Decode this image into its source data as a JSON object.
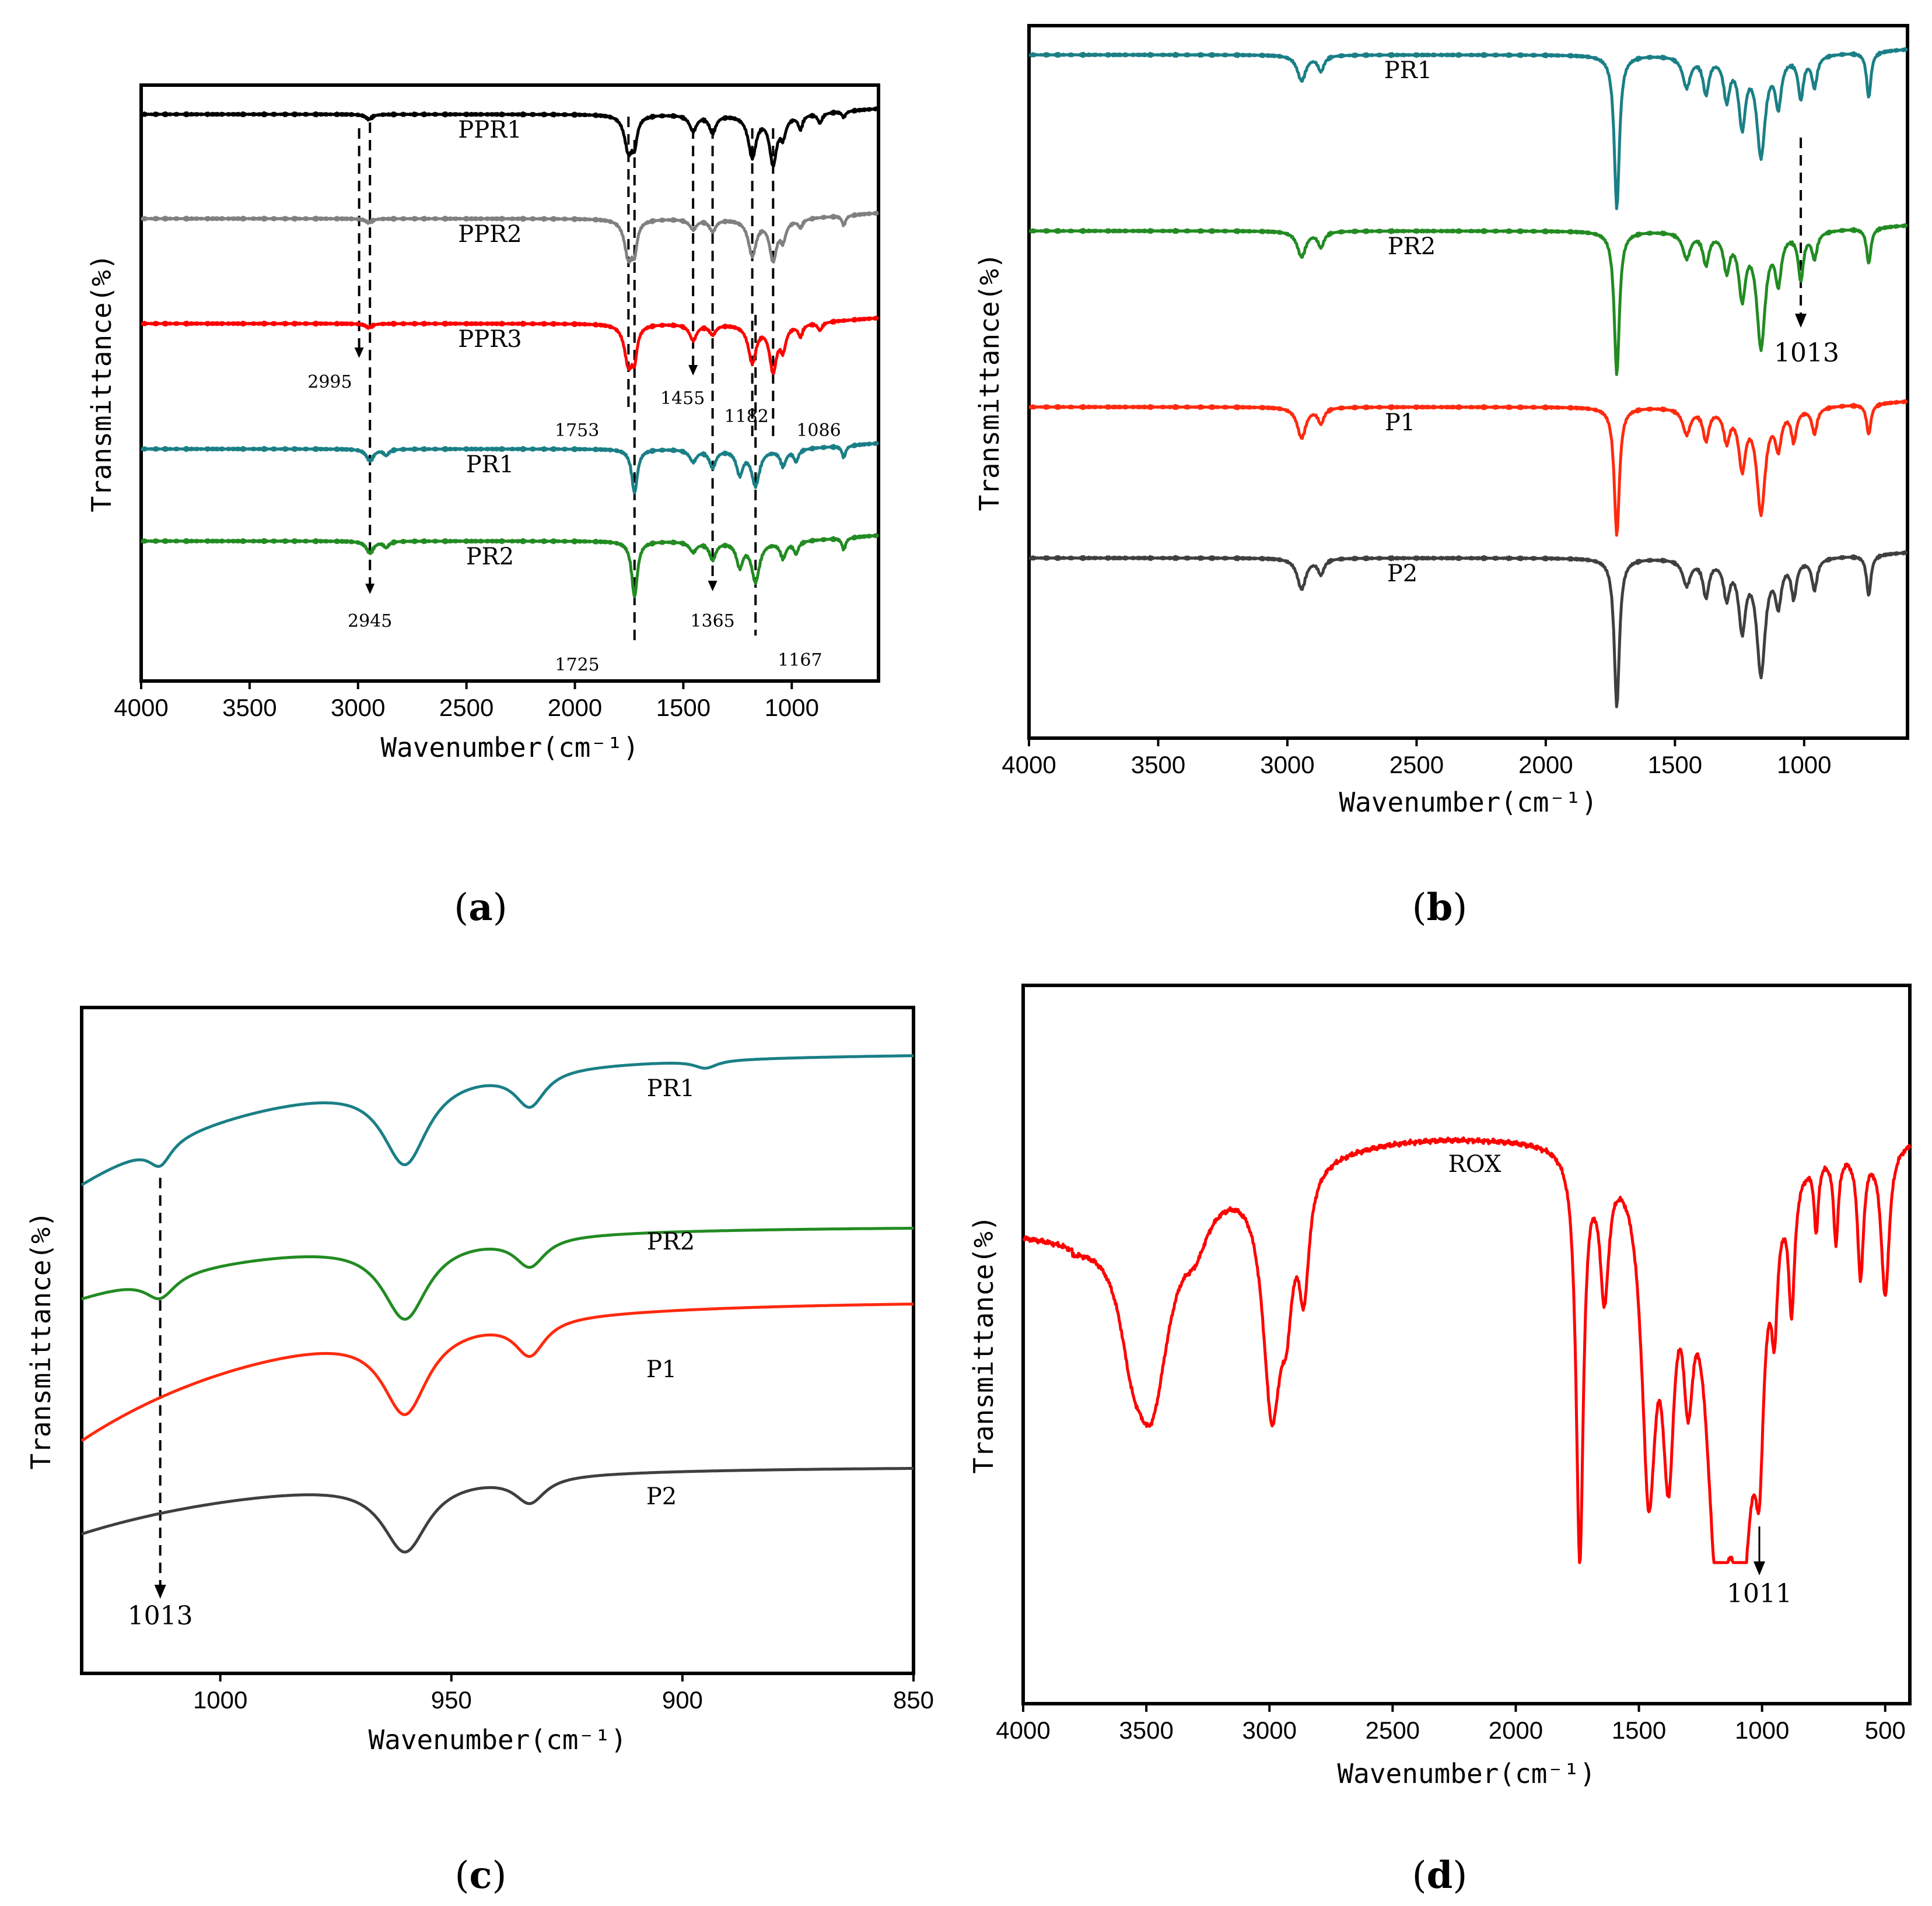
{
  "panels": [
    {
      "id": "a",
      "caption": "(a)",
      "chart_data": {
        "type": "line",
        "title": "",
        "xlabel": "Wavenumber(cm⁻¹)",
        "ylabel": "Transmittance(%)",
        "xlim": [
          4000,
          600
        ],
        "xticks": [
          4000,
          3500,
          3000,
          2500,
          2000,
          1500,
          1000
        ],
        "xtick_labels": [
          "4000",
          "3500",
          "3000",
          "2500",
          "2000",
          "1500",
          "1000"
        ],
        "series": [
          {
            "name": "PPR1",
            "color": "#000000",
            "offset": 0,
            "bands": [
              [
                2950,
                18,
                0.25
              ],
              [
                1753,
                22,
                1.8
              ],
              [
                1725,
                14,
                1.2
              ],
              [
                1455,
                20,
                0.8
              ],
              [
                1365,
                18,
                0.9
              ],
              [
                1182,
                22,
                2.1
              ],
              [
                1086,
                20,
                2.4
              ],
              [
                1040,
                16,
                0.9
              ],
              [
                960,
                12,
                0.7
              ],
              [
                870,
                12,
                0.5
              ],
              [
                760,
                10,
                0.3
              ]
            ]
          },
          {
            "name": "PPR2",
            "color": "#808080",
            "offset": 1,
            "bands": [
              [
                2950,
                18,
                0.2
              ],
              [
                1753,
                22,
                1.9
              ],
              [
                1725,
                14,
                1.3
              ],
              [
                1455,
                20,
                0.5
              ],
              [
                1365,
                18,
                0.6
              ],
              [
                1182,
                22,
                1.8
              ],
              [
                1086,
                20,
                2.0
              ],
              [
                1040,
                16,
                0.9
              ],
              [
                960,
                12,
                0.4
              ],
              [
                760,
                10,
                0.5
              ]
            ]
          },
          {
            "name": "PPR3",
            "color": "#ff0000",
            "offset": 2,
            "bands": [
              [
                2950,
                18,
                0.2
              ],
              [
                1753,
                22,
                2.0
              ],
              [
                1725,
                14,
                1.4
              ],
              [
                1455,
                20,
                0.8
              ],
              [
                1365,
                18,
                0.5
              ],
              [
                1182,
                22,
                1.9
              ],
              [
                1086,
                20,
                2.3
              ],
              [
                1040,
                16,
                1.1
              ],
              [
                960,
                12,
                0.6
              ],
              [
                870,
                12,
                0.4
              ]
            ]
          },
          {
            "name": "PR1",
            "color": "#1a7f86",
            "offset": 3,
            "bands": [
              [
                2945,
                20,
                0.6
              ],
              [
                2870,
                14,
                0.3
              ],
              [
                1725,
                16,
                2.2
              ],
              [
                1455,
                20,
                0.6
              ],
              [
                1365,
                18,
                0.9
              ],
              [
                1240,
                18,
                1.2
              ],
              [
                1167,
                22,
                1.8
              ],
              [
                1040,
                16,
                0.8
              ],
              [
                980,
                12,
                0.6
              ],
              [
                760,
                10,
                0.6
              ]
            ]
          },
          {
            "name": "PR2",
            "color": "#228b22",
            "offset": 4,
            "bands": [
              [
                2945,
                20,
                0.6
              ],
              [
                2870,
                14,
                0.3
              ],
              [
                1725,
                16,
                2.8
              ],
              [
                1455,
                20,
                0.5
              ],
              [
                1365,
                18,
                0.9
              ],
              [
                1240,
                18,
                1.2
              ],
              [
                1167,
                22,
                2.0
              ],
              [
                1040,
                16,
                0.8
              ],
              [
                980,
                12,
                0.6
              ],
              [
                760,
                10,
                0.6
              ]
            ]
          }
        ],
        "annotations": [
          "2995",
          "2945",
          "1753",
          "1725",
          "1455",
          "1365",
          "1182",
          "1167",
          "1086"
        ]
      }
    },
    {
      "id": "b",
      "caption": "(b)",
      "chart_data": {
        "type": "line",
        "title": "",
        "xlabel": "Wavenumber(cm⁻¹)",
        "ylabel": "Transmittance(%)",
        "xlim": [
          4000,
          600
        ],
        "xticks": [
          4000,
          3500,
          3000,
          2500,
          2000,
          1500,
          1000
        ],
        "xtick_labels": [
          "4000",
          "3500",
          "3000",
          "2500",
          "2000",
          "1500",
          "1000"
        ],
        "series": [
          {
            "name": "PR1",
            "color": "#1a7f86",
            "offset": 0,
            "bands": [
              [
                2945,
                20,
                0.5
              ],
              [
                2870,
                14,
                0.3
              ],
              [
                1725,
                12,
                3.0
              ],
              [
                1455,
                18,
                0.6
              ],
              [
                1380,
                14,
                0.7
              ],
              [
                1300,
                14,
                0.8
              ],
              [
                1240,
                16,
                1.3
              ],
              [
                1167,
                20,
                1.9
              ],
              [
                1100,
                14,
                0.9
              ],
              [
                1013,
                12,
                0.8
              ],
              [
                960,
                12,
                0.6
              ],
              [
                750,
                10,
                0.9
              ]
            ]
          },
          {
            "name": "PR2",
            "color": "#228b22",
            "offset": 1,
            "bands": [
              [
                2945,
                20,
                0.5
              ],
              [
                2870,
                14,
                0.3
              ],
              [
                1725,
                12,
                2.8
              ],
              [
                1455,
                18,
                0.5
              ],
              [
                1380,
                14,
                0.6
              ],
              [
                1300,
                14,
                0.7
              ],
              [
                1240,
                16,
                1.2
              ],
              [
                1167,
                20,
                2.2
              ],
              [
                1100,
                14,
                0.9
              ],
              [
                1013,
                12,
                0.9
              ],
              [
                960,
                12,
                0.5
              ],
              [
                750,
                10,
                0.7
              ]
            ]
          },
          {
            "name": "P1",
            "color": "#ff2a0e",
            "offset": 2,
            "bands": [
              [
                2945,
                20,
                0.6
              ],
              [
                2870,
                14,
                0.3
              ],
              [
                1725,
                12,
                2.5
              ],
              [
                1455,
                18,
                0.5
              ],
              [
                1380,
                14,
                0.6
              ],
              [
                1300,
                14,
                0.6
              ],
              [
                1240,
                16,
                1.1
              ],
              [
                1167,
                20,
                2.0
              ],
              [
                1100,
                14,
                0.7
              ],
              [
                1040,
                12,
                0.6
              ],
              [
                960,
                12,
                0.5
              ],
              [
                750,
                10,
                0.6
              ]
            ]
          },
          {
            "name": "P2",
            "color": "#3f3f3f",
            "offset": 3,
            "bands": [
              [
                2945,
                20,
                0.6
              ],
              [
                2870,
                14,
                0.3
              ],
              [
                1725,
                12,
                2.9
              ],
              [
                1455,
                18,
                0.5
              ],
              [
                1380,
                14,
                0.7
              ],
              [
                1300,
                14,
                0.7
              ],
              [
                1240,
                16,
                1.3
              ],
              [
                1167,
                20,
                2.2
              ],
              [
                1100,
                14,
                0.8
              ],
              [
                1040,
                12,
                0.7
              ],
              [
                960,
                12,
                0.6
              ],
              [
                750,
                10,
                0.8
              ]
            ]
          }
        ],
        "annotations": [
          "1013"
        ]
      }
    },
    {
      "id": "c",
      "caption": "(c)",
      "chart_data": {
        "type": "line",
        "title": "",
        "xlabel": "Wavenumber(cm⁻¹)",
        "ylabel": "Transmittance(%)",
        "xlim": [
          1030,
          850
        ],
        "xticks": [
          1000,
          950,
          900,
          850
        ],
        "xtick_labels": [
          "1000",
          "950",
          "900",
          "850"
        ],
        "series": [
          {
            "name": "PR1",
            "color": "#1a7f86",
            "offset": 0,
            "bands": [
              [
                1013,
                3,
                0.35
              ],
              [
                960,
                6,
                1.3
              ],
              [
                933,
                4,
                0.55
              ],
              [
                895,
                3,
                0.12
              ]
            ]
          },
          {
            "name": "PR2",
            "color": "#228b22",
            "offset": 1,
            "bands": [
              [
                1013,
                4,
                0.35
              ],
              [
                960,
                6,
                1.2
              ],
              [
                933,
                4,
                0.45
              ]
            ]
          },
          {
            "name": "P1",
            "color": "#ff2a0e",
            "offset": 2,
            "bands": [
              [
                960,
                6,
                1.3
              ],
              [
                933,
                4,
                0.55
              ]
            ]
          },
          {
            "name": "P2",
            "color": "#3f3f3f",
            "offset": 3,
            "bands": [
              [
                960,
                6,
                1.1
              ],
              [
                933,
                4,
                0.4
              ]
            ]
          }
        ],
        "annotations": [
          "1013"
        ]
      }
    },
    {
      "id": "d",
      "caption": "(d)",
      "chart_data": {
        "type": "line",
        "title": "",
        "xlabel": "Wavenumber(cm⁻¹)",
        "ylabel": "Transmittance(%)",
        "xlim": [
          4000,
          400
        ],
        "xticks": [
          4000,
          3500,
          3000,
          2500,
          2000,
          1500,
          1000,
          500
        ],
        "xtick_labels": [
          "4000",
          "3500",
          "3000",
          "2500",
          "2000",
          "1500",
          "1000",
          "500"
        ],
        "series": [
          {
            "name": "ROX",
            "color": "#ff0000",
            "offset": 0
          }
        ],
        "annotations": [
          "1011"
        ]
      }
    }
  ]
}
